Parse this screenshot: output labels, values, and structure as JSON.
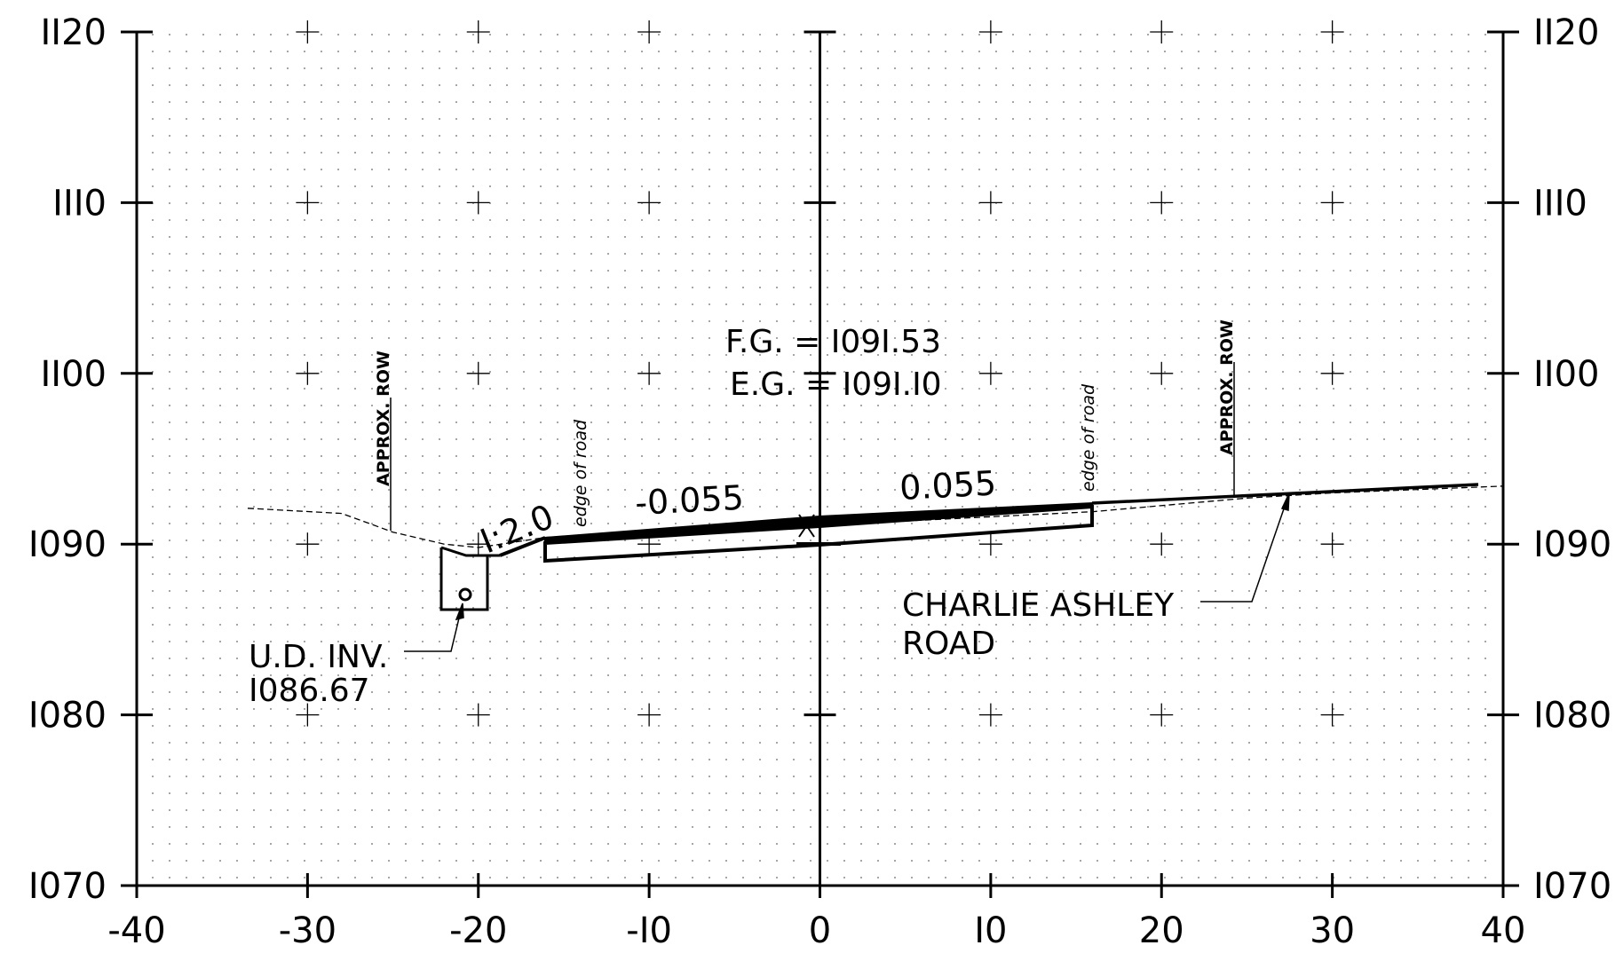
{
  "diagram": {
    "type": "roadway-cross-section",
    "x_axis": {
      "range": [
        -40,
        40
      ],
      "ticks": [
        -40,
        -30,
        -20,
        -10,
        0,
        10,
        20,
        30,
        40
      ],
      "tick_labels": [
        "-40",
        "-30",
        "-20",
        "-I0",
        "0",
        "I0",
        "20",
        "30",
        "40"
      ]
    },
    "y_axis": {
      "range": [
        1070,
        1120
      ],
      "ticks": [
        1120,
        1110,
        1100,
        1090,
        1080,
        1070
      ],
      "tick_labels": [
        "II20",
        "III0",
        "II00",
        "I090",
        "I080",
        "I070"
      ]
    },
    "grid": "dotted, crosses at each major intersection",
    "annotations": {
      "fg": "F.G. = I09I.53",
      "eg": "E.G. = I09I.I0",
      "slope_left": "-0.055",
      "slope_right": "0.055",
      "side_slope": "I:2.0",
      "edge_of_road_left": "edge of road",
      "edge_of_road_right": "edge of road",
      "approx_row_left": "APPROX. ROW",
      "approx_row_right": "APPROX. ROW",
      "ud_inv_line1": "U.D. INV.",
      "ud_inv_line2": "I086.67",
      "road_name_line1": "CHARLIE ASHLEY",
      "road_name_line2": "ROAD"
    },
    "existing_ground": [
      [
        -33.5,
        1092.1
      ],
      [
        -28,
        1091.8
      ],
      [
        -25,
        1090.7
      ],
      [
        -22,
        1090.0
      ],
      [
        -20,
        1089.8
      ],
      [
        -16,
        1090.4
      ],
      [
        0,
        1091.1
      ],
      [
        16,
        1091.9
      ],
      [
        25,
        1092.7
      ],
      [
        30,
        1093.0
      ],
      [
        40,
        1093.4
      ]
    ],
    "finished_grade": [
      [
        -16,
        1090.6
      ],
      [
        0,
        1091.53
      ],
      [
        16,
        1092.4
      ],
      [
        38.5,
        1093.5
      ]
    ]
  }
}
